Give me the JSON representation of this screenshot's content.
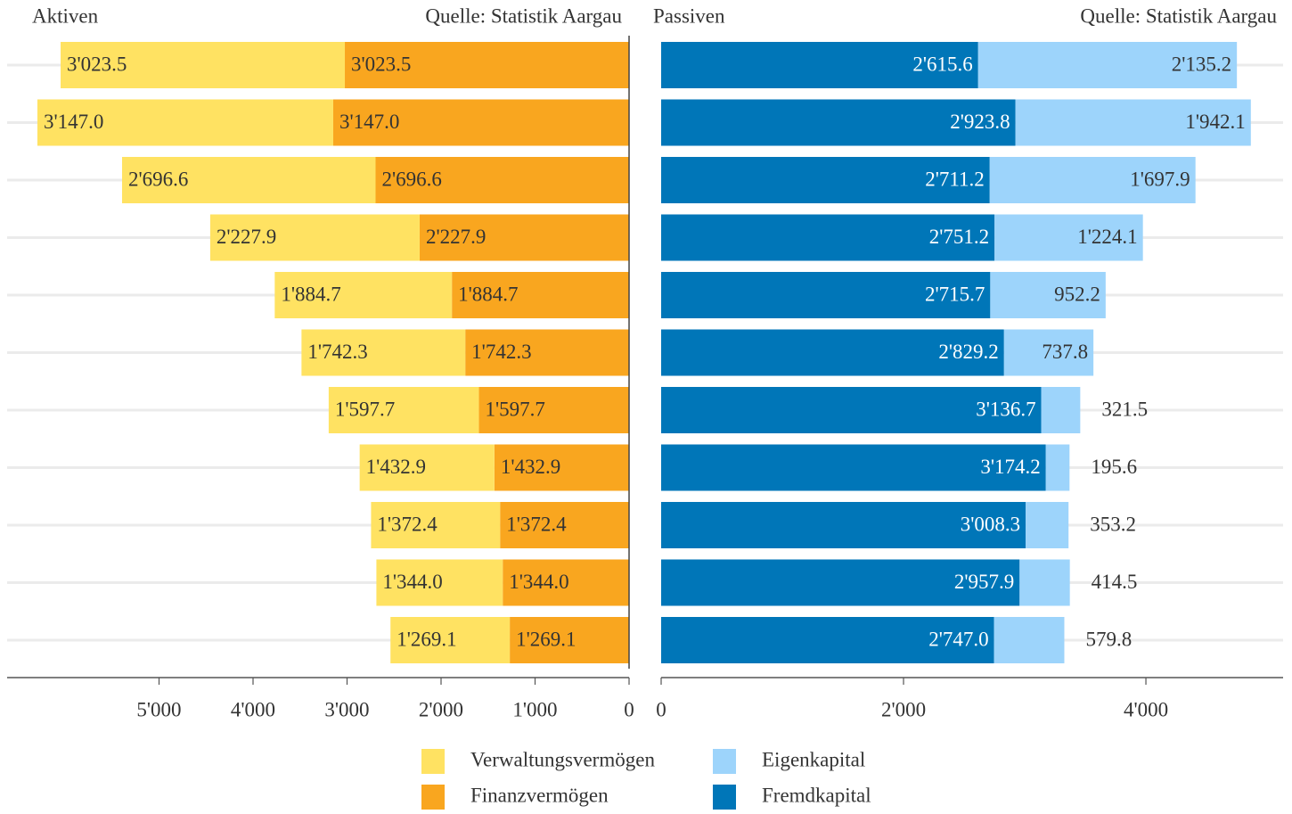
{
  "chart_data": [
    {
      "type": "bar",
      "orientation": "horizontal",
      "x_reversed": true,
      "title": "Aktiven",
      "subtitle": "Quelle: Statistik Aargau",
      "series": [
        {
          "name": "Verwaltungsvermögen",
          "color": "#ffe262",
          "label_color": "#333333",
          "values": [
            3023.5,
            3147.0,
            2696.6,
            2227.9,
            1884.7,
            1742.3,
            1597.7,
            1432.9,
            1372.4,
            1344.0,
            1269.1
          ],
          "value_labels": [
            "3'023.5",
            "3'147.0",
            "2'696.6",
            "2'227.9",
            "1'884.7",
            "1'742.3",
            "1'597.7",
            "1'432.9",
            "1'372.4",
            "1'344.0",
            "1'269.1"
          ]
        },
        {
          "name": "Finanzvermögen",
          "color": "#f9a61f",
          "label_color": "#333333",
          "values": [
            3023.5,
            3147.0,
            2696.6,
            2227.9,
            1884.7,
            1742.3,
            1597.7,
            1432.9,
            1372.4,
            1344.0,
            1269.1
          ],
          "value_labels": [
            "3'023.5",
            "3'147.0",
            "2'696.6",
            "2'227.9",
            "1'884.7",
            "1'742.3",
            "1'597.7",
            "1'432.9",
            "1'372.4",
            "1'344.0",
            "1'269.1"
          ]
        }
      ],
      "xlim": [
        0,
        6616
      ],
      "xticks": [
        0,
        {
          "value": 1000,
          "label": "1'000"
        },
        {
          "value": 2000,
          "label": "2'000"
        },
        {
          "value": 3000,
          "label": "3'000"
        },
        {
          "value": 4000,
          "label": "4'000"
        },
        {
          "value": 5000,
          "label": "5'000"
        }
      ],
      "grid": true
    },
    {
      "type": "bar",
      "orientation": "horizontal",
      "x_reversed": false,
      "title": "Passiven",
      "subtitle": "Quelle: Statistik Aargau",
      "series": [
        {
          "name": "Eigenkapital",
          "color": "#9dd4fb",
          "label_color": "#333333",
          "values": [
            2135.2,
            1942.1,
            1697.9,
            1224.1,
            952.2,
            737.8,
            321.5,
            195.6,
            353.2,
            414.5,
            579.8
          ],
          "value_labels": [
            "2'135.2",
            "1'942.1",
            "1'697.9",
            "1'224.1",
            "952.2",
            "737.8",
            "321.5",
            "195.6",
            "353.2",
            "414.5",
            "579.8"
          ]
        },
        {
          "name": "Fremdkapital",
          "color": "#0076b8",
          "label_color": "#ffffff",
          "values": [
            2615.6,
            2923.8,
            2711.2,
            2751.2,
            2715.7,
            2829.2,
            3136.7,
            3174.2,
            3008.3,
            2957.9,
            2747.0
          ],
          "value_labels": [
            "2'615.6",
            "2'923.8",
            "2'711.2",
            "2'751.2",
            "2'715.7",
            "2'829.2",
            "3'136.7",
            "3'174.2",
            "3'008.3",
            "2'957.9",
            "2'747.0"
          ]
        }
      ],
      "xlim": [
        0,
        5132
      ],
      "xticks": [
        0,
        {
          "value": 2000,
          "label": "2'000"
        },
        {
          "value": 4000,
          "label": "4'000"
        }
      ],
      "grid": true
    }
  ]
}
